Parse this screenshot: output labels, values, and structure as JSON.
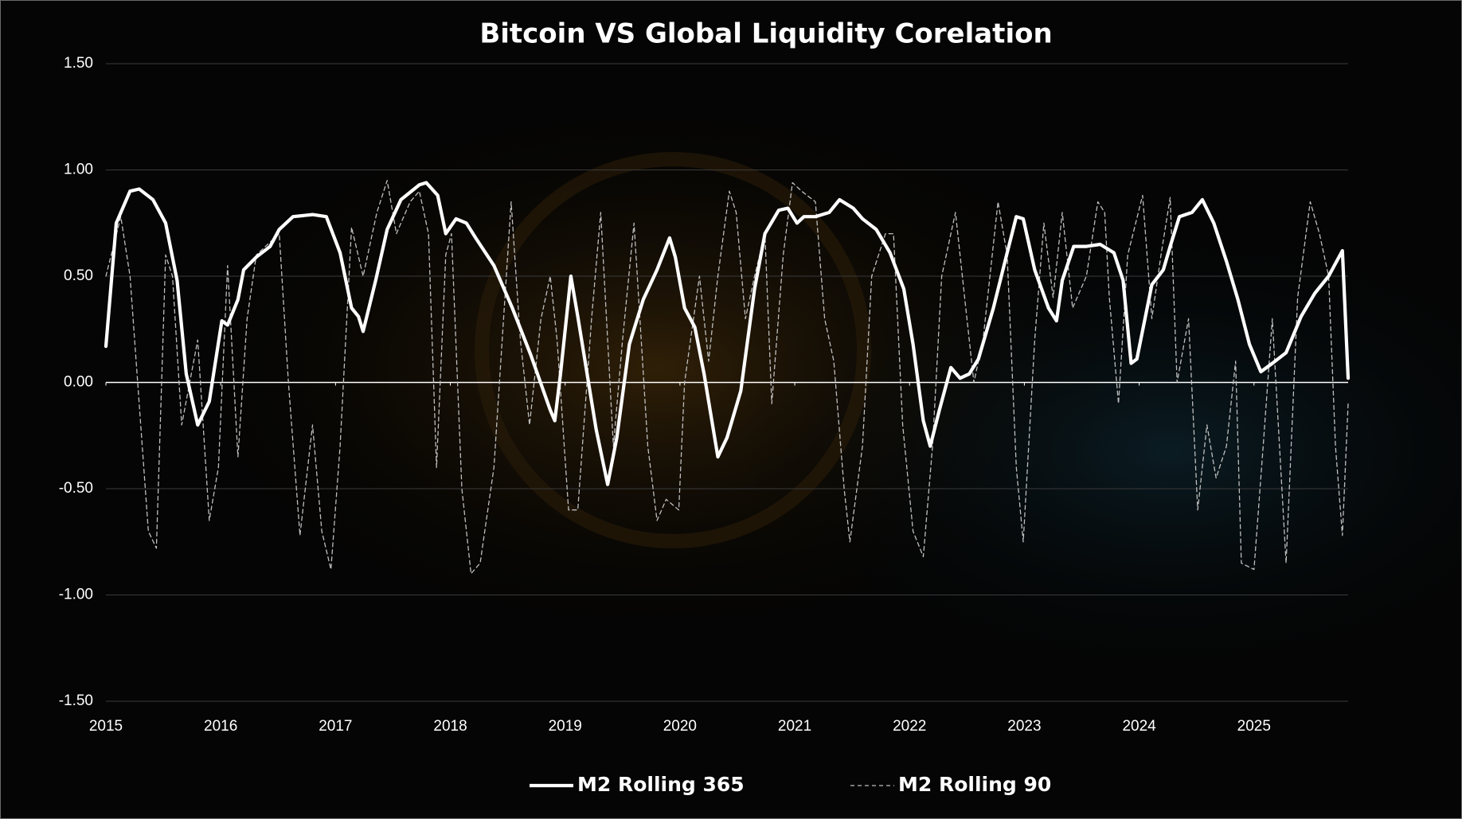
{
  "chart_data": {
    "type": "line",
    "title": "Bitcoin VS Global Liquidity Corelation",
    "xlim": [
      2015,
      2025.82
    ],
    "xticks": [
      2015,
      2016,
      2017,
      2018,
      2019,
      2020,
      2021,
      2022,
      2023,
      2024,
      2025
    ],
    "ylim": [
      -1.5,
      1.5
    ],
    "yticks": [
      {
        "value": -1.5,
        "label": "-1.50"
      },
      {
        "value": -1,
        "label": "-1.00"
      },
      {
        "value": -0.5,
        "label": "-0.50"
      },
      {
        "value": 0,
        "label": "0.00"
      },
      {
        "value": 0.5,
        "label": "0.50"
      },
      {
        "value": 1,
        "label": "1.00"
      },
      {
        "value": 1.5,
        "label": "1.50"
      }
    ],
    "grid": true,
    "legend": "bottom",
    "series": [
      {
        "name": "M2 Rolling 365",
        "color": "#ffffff",
        "line_style": "solid",
        "x": [
          2015.0,
          2015.09,
          2015.21,
          2015.29,
          2015.41,
          2015.52,
          2015.62,
          2015.7,
          2015.8,
          2015.9,
          2016.01,
          2016.06,
          2016.15,
          2016.2,
          2016.31,
          2016.43,
          2016.51,
          2016.63,
          2016.8,
          2016.92,
          2017.04,
          2017.14,
          2017.2,
          2017.24,
          2017.35,
          2017.45,
          2017.57,
          2017.73,
          2017.79,
          2017.89,
          2017.96,
          2018.05,
          2018.14,
          2018.22,
          2018.38,
          2018.54,
          2018.7,
          2018.87,
          2018.91,
          2018.96,
          2019.05,
          2019.11,
          2019.27,
          2019.37,
          2019.45,
          2019.56,
          2019.68,
          2019.8,
          2019.91,
          2019.96,
          2020.04,
          2020.13,
          2020.21,
          2020.33,
          2020.41,
          2020.53,
          2020.65,
          2020.74,
          2020.86,
          2020.94,
          2021.02,
          2021.08,
          2021.18,
          2021.3,
          2021.39,
          2021.51,
          2021.59,
          2021.71,
          2021.83,
          2021.95,
          2022.03,
          2022.12,
          2022.18,
          2022.26,
          2022.36,
          2022.44,
          2022.52,
          2022.6,
          2022.73,
          2022.85,
          2022.93,
          2022.99,
          2023.09,
          2023.21,
          2023.28,
          2023.33,
          2023.43,
          2023.54,
          2023.66,
          2023.78,
          2023.86,
          2023.93,
          2023.98,
          2024.11,
          2024.21,
          2024.27,
          2024.35,
          2024.46,
          2024.55,
          2024.65,
          2024.76,
          2024.86,
          2024.96,
          2025.06,
          2025.16,
          2025.28,
          2025.41,
          2025.53,
          2025.65,
          2025.77,
          2025.82
        ],
        "values": [
          0.17,
          0.75,
          0.9,
          0.91,
          0.86,
          0.75,
          0.48,
          0.04,
          -0.2,
          -0.09,
          0.29,
          0.27,
          0.39,
          0.53,
          0.59,
          0.64,
          0.72,
          0.78,
          0.79,
          0.78,
          0.61,
          0.35,
          0.31,
          0.24,
          0.48,
          0.72,
          0.86,
          0.93,
          0.94,
          0.88,
          0.7,
          0.77,
          0.75,
          0.68,
          0.55,
          0.35,
          0.13,
          -0.13,
          -0.18,
          0.04,
          0.5,
          0.31,
          -0.22,
          -0.48,
          -0.26,
          0.18,
          0.39,
          0.53,
          0.68,
          0.59,
          0.35,
          0.26,
          0.04,
          -0.35,
          -0.26,
          -0.04,
          0.44,
          0.7,
          0.81,
          0.82,
          0.75,
          0.78,
          0.78,
          0.8,
          0.86,
          0.82,
          0.77,
          0.72,
          0.61,
          0.44,
          0.18,
          -0.18,
          -0.3,
          -0.13,
          0.07,
          0.02,
          0.04,
          0.11,
          0.35,
          0.61,
          0.78,
          0.77,
          0.53,
          0.35,
          0.29,
          0.48,
          0.64,
          0.64,
          0.65,
          0.61,
          0.48,
          0.09,
          0.11,
          0.46,
          0.53,
          0.64,
          0.78,
          0.8,
          0.86,
          0.75,
          0.57,
          0.39,
          0.18,
          0.05,
          0.09,
          0.14,
          0.31,
          0.42,
          0.5,
          0.62,
          0.02
        ]
      },
      {
        "name": "M2 Rolling 90",
        "color": "#bfbfbf",
        "line_style": "dashed",
        "x": [
          2015.0,
          2015.13,
          2015.21,
          2015.29,
          2015.37,
          2015.44,
          2015.52,
          2015.58,
          2015.66,
          2015.8,
          2015.9,
          2015.98,
          2016.06,
          2016.15,
          2016.23,
          2016.31,
          2016.51,
          2016.59,
          2016.69,
          2016.8,
          2016.88,
          2016.96,
          2017.04,
          2017.14,
          2017.24,
          2017.36,
          2017.45,
          2017.53,
          2017.65,
          2017.73,
          2017.81,
          2017.88,
          2017.96,
          2018.01,
          2018.1,
          2018.18,
          2018.26,
          2018.38,
          2018.53,
          2018.61,
          2018.69,
          2018.79,
          2018.87,
          2018.93,
          2019.03,
          2019.11,
          2019.23,
          2019.31,
          2019.42,
          2019.5,
          2019.6,
          2019.72,
          2019.8,
          2019.88,
          2019.99,
          2020.04,
          2020.17,
          2020.25,
          2020.33,
          2020.43,
          2020.49,
          2020.57,
          2020.65,
          2020.74,
          2020.8,
          2020.9,
          2020.98,
          2021.06,
          2021.18,
          2021.26,
          2021.34,
          2021.43,
          2021.48,
          2021.59,
          2021.67,
          2021.79,
          2021.86,
          2021.94,
          2022.03,
          2022.12,
          2022.2,
          2022.28,
          2022.4,
          2022.48,
          2022.56,
          2022.64,
          2022.77,
          2022.85,
          2022.93,
          2022.99,
          2023.09,
          2023.17,
          2023.25,
          2023.33,
          2023.42,
          2023.54,
          2023.64,
          2023.7,
          2023.74,
          2023.82,
          2023.9,
          2024.03,
          2024.11,
          2024.19,
          2024.27,
          2024.33,
          2024.43,
          2024.51,
          2024.59,
          2024.67,
          2024.76,
          2024.84,
          2024.89,
          2025.0,
          2025.08,
          2025.16,
          2025.28,
          2025.38,
          2025.49,
          2025.57,
          2025.65,
          2025.71,
          2025.77,
          2025.82
        ],
        "values": [
          0.5,
          0.78,
          0.5,
          -0.1,
          -0.7,
          -0.78,
          0.6,
          0.5,
          -0.2,
          0.2,
          -0.65,
          -0.4,
          0.55,
          -0.35,
          0.3,
          0.6,
          0.7,
          0.0,
          -0.72,
          -0.2,
          -0.7,
          -0.88,
          -0.3,
          0.73,
          0.5,
          0.8,
          0.95,
          0.7,
          0.85,
          0.9,
          0.7,
          -0.4,
          0.6,
          0.7,
          -0.5,
          -0.9,
          -0.85,
          -0.4,
          0.85,
          0.2,
          -0.2,
          0.3,
          0.5,
          0.2,
          -0.6,
          -0.6,
          0.3,
          0.8,
          -0.3,
          0.2,
          0.75,
          -0.3,
          -0.65,
          -0.55,
          -0.6,
          0.0,
          0.5,
          0.1,
          0.5,
          0.9,
          0.8,
          0.3,
          0.5,
          0.7,
          -0.1,
          0.6,
          0.94,
          0.9,
          0.85,
          0.3,
          0.1,
          -0.5,
          -0.75,
          -0.3,
          0.5,
          0.7,
          0.7,
          -0.2,
          -0.7,
          -0.82,
          -0.3,
          0.5,
          0.8,
          0.4,
          0.0,
          0.2,
          0.85,
          0.6,
          -0.4,
          -0.75,
          0.2,
          0.75,
          0.4,
          0.8,
          0.35,
          0.5,
          0.85,
          0.8,
          0.4,
          -0.1,
          0.6,
          0.88,
          0.3,
          0.6,
          0.87,
          0.0,
          0.3,
          -0.6,
          -0.2,
          -0.45,
          -0.3,
          0.1,
          -0.85,
          -0.88,
          -0.3,
          0.3,
          -0.85,
          0.4,
          0.85,
          0.7,
          0.5,
          -0.3,
          -0.72,
          -0.1
        ]
      }
    ]
  }
}
